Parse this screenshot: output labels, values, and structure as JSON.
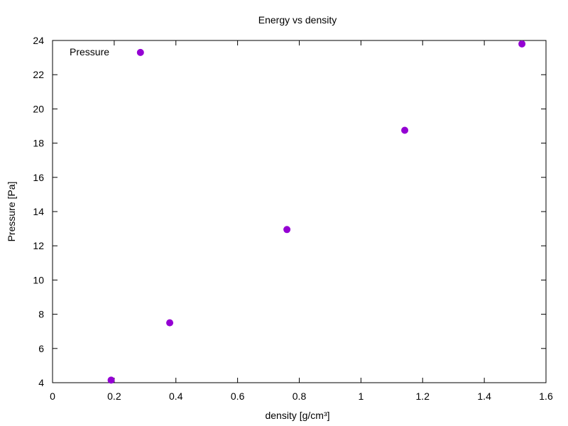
{
  "chart_data": {
    "type": "scatter",
    "title": "Energy vs density",
    "xlabel": "density [g/cm³]",
    "ylabel": "Pressure [Pa]",
    "xlim": [
      0,
      1.6
    ],
    "ylim": [
      4,
      24
    ],
    "xticks": [
      0,
      0.2,
      0.4,
      0.6,
      0.8,
      1,
      1.2,
      1.4,
      1.6
    ],
    "xtick_labels": [
      "0",
      "0.2",
      "0.4",
      "0.6",
      "0.8",
      "1",
      "1.2",
      "1.4",
      "1.6"
    ],
    "yticks": [
      4,
      6,
      8,
      10,
      12,
      14,
      16,
      18,
      20,
      22,
      24
    ],
    "ytick_labels": [
      "4",
      "6",
      "8",
      "10",
      "12",
      "14",
      "16",
      "18",
      "20",
      "22",
      "24"
    ],
    "grid": false,
    "legend_position": "top-left",
    "series": [
      {
        "name": "Pressure",
        "color": "#9400d3",
        "marker": "circle",
        "points": [
          {
            "x": 0.19,
            "y": 4.15
          },
          {
            "x": 0.285,
            "y": 23.3
          },
          {
            "x": 0.38,
            "y": 7.5
          },
          {
            "x": 0.76,
            "y": 12.95
          },
          {
            "x": 1.142,
            "y": 18.75
          },
          {
            "x": 1.522,
            "y": 23.8
          }
        ]
      }
    ]
  }
}
